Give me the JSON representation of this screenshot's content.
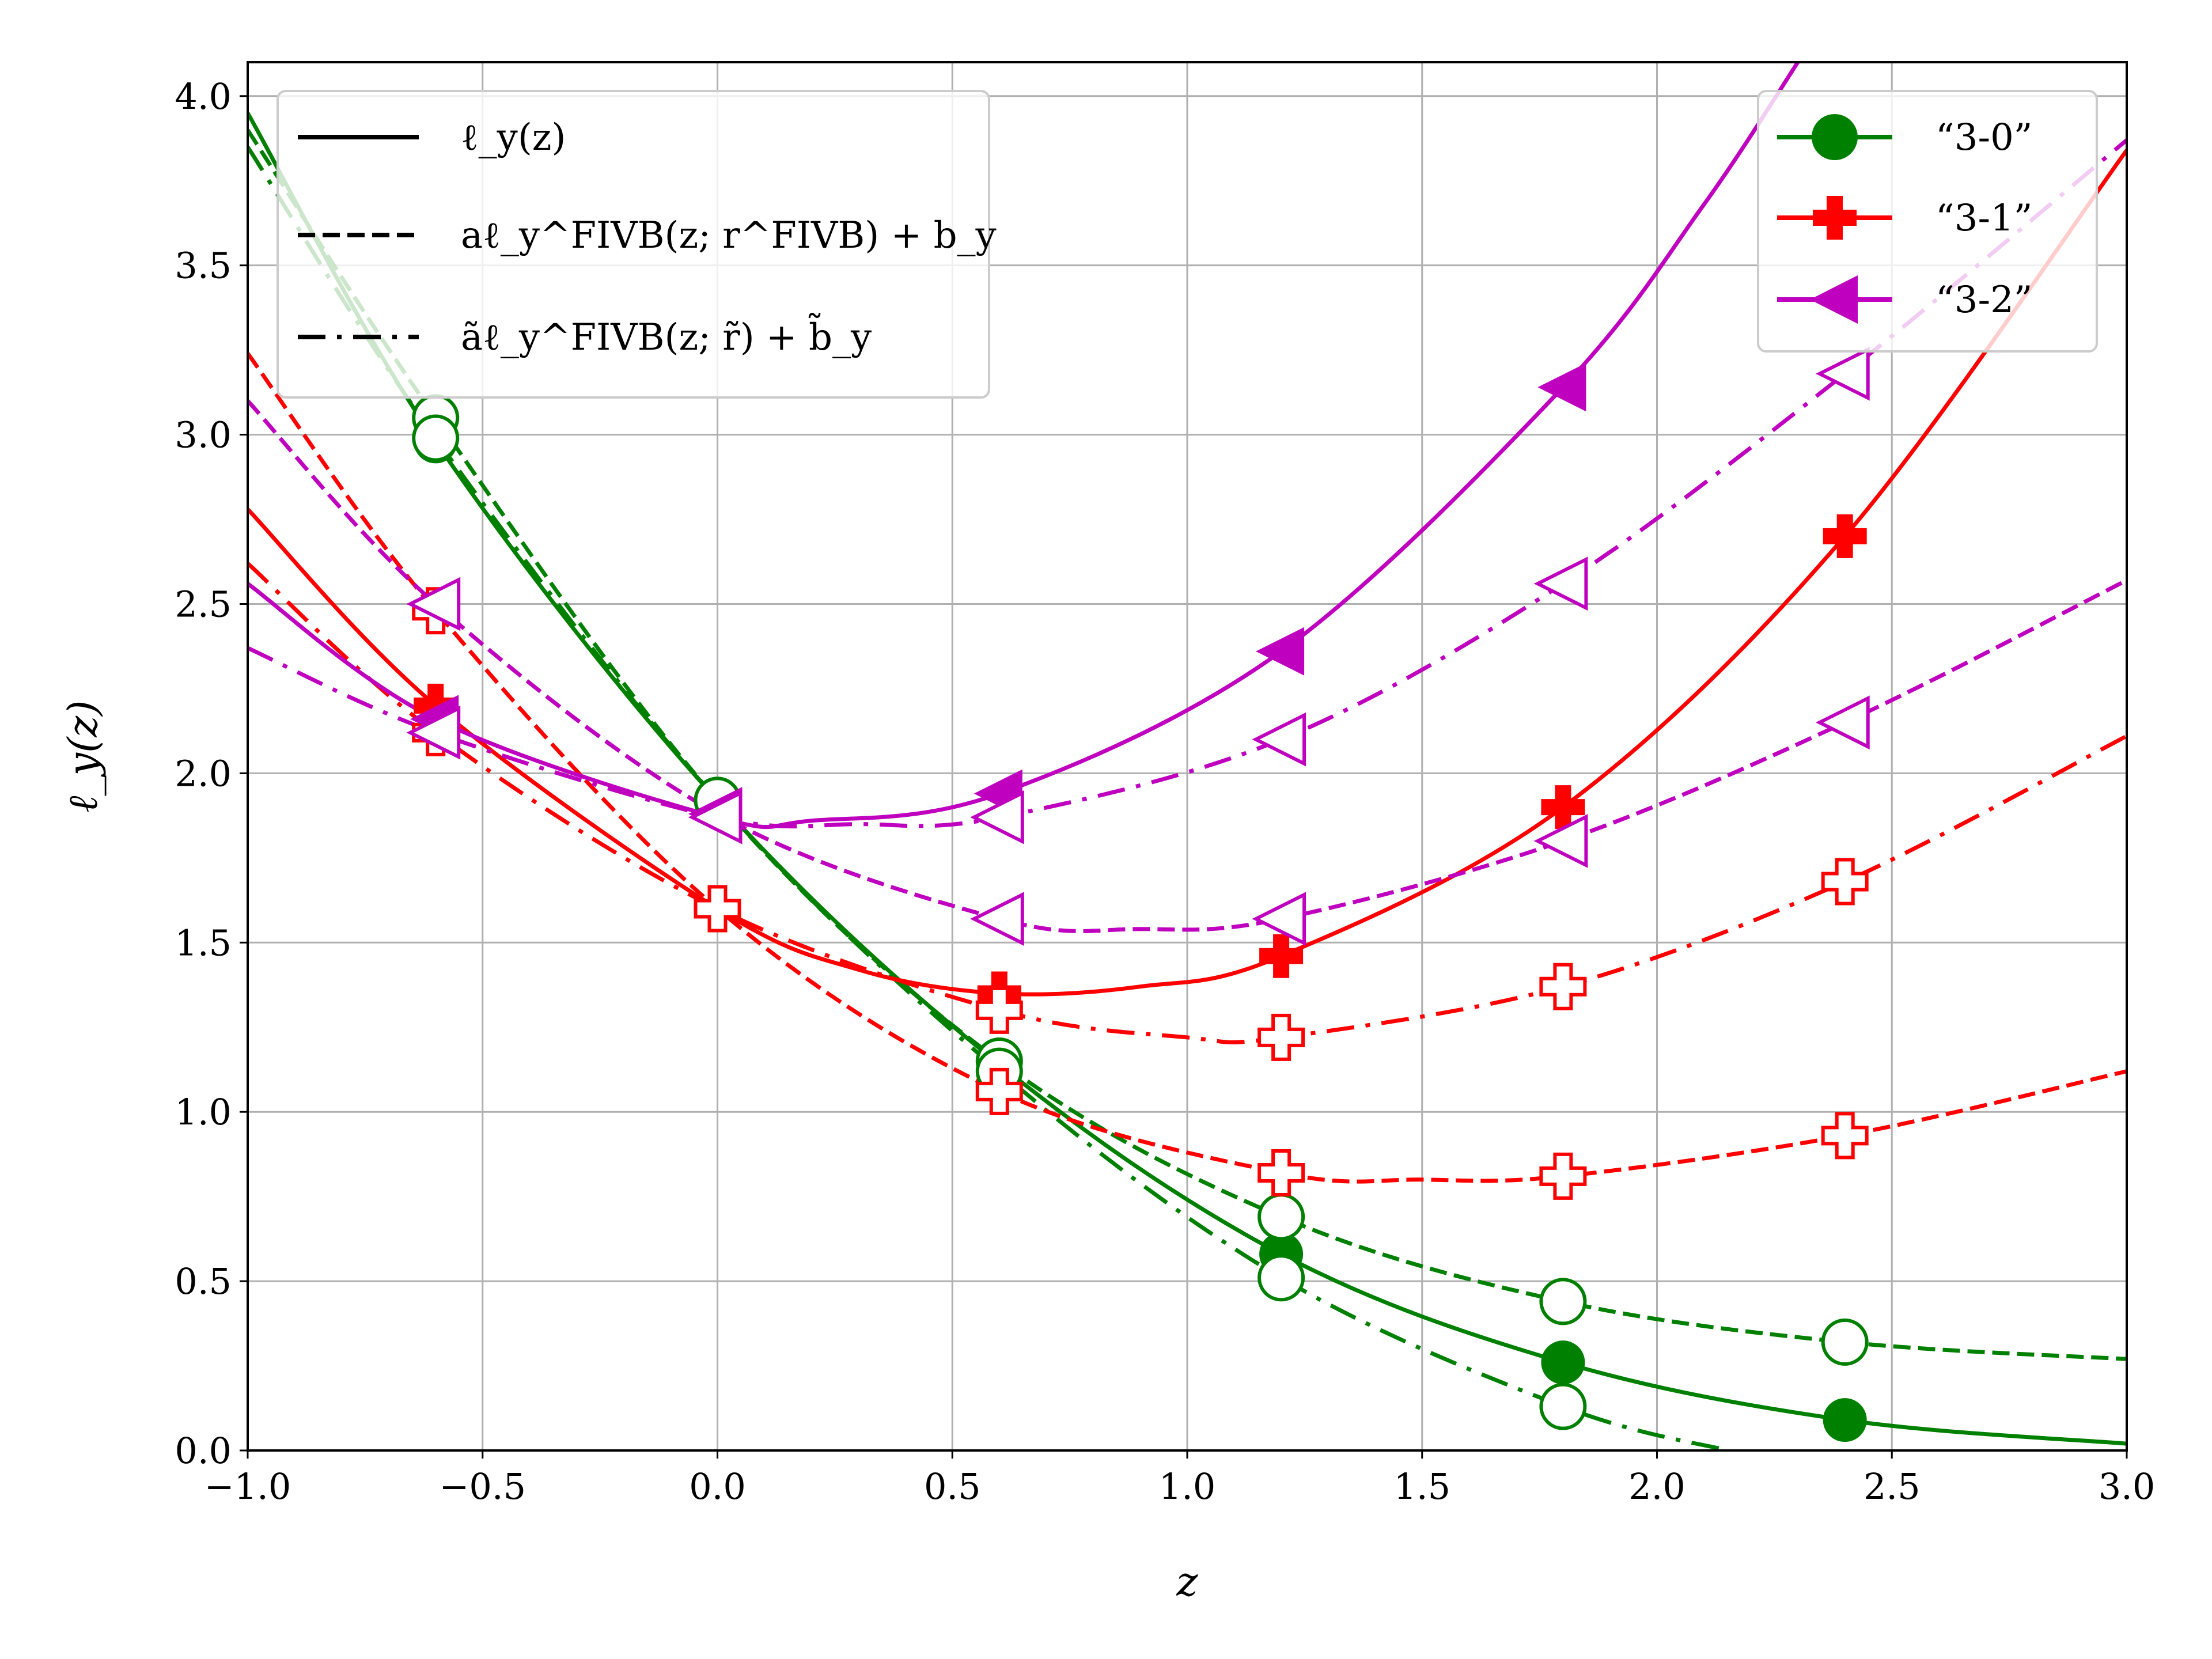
{
  "chart_data": {
    "type": "line",
    "xlabel": "z",
    "ylabel": "ℓ_y(z)",
    "xlim": [
      -1.0,
      3.0
    ],
    "ylim": [
      0.0,
      4.1
    ],
    "grid": true,
    "x_ticks": [
      -1.0,
      -0.5,
      0.0,
      0.5,
      1.0,
      1.5,
      2.0,
      2.5,
      3.0
    ],
    "x_tick_labels": [
      "−1.0",
      "−0.5",
      "0.0",
      "0.5",
      "1.0",
      "1.5",
      "2.0",
      "2.5",
      "3.0"
    ],
    "y_ticks": [
      0.0,
      0.5,
      1.0,
      1.5,
      2.0,
      2.5,
      3.0,
      3.5,
      4.0
    ],
    "y_tick_labels": [
      "0.0",
      "0.5",
      "1.0",
      "1.5",
      "2.0",
      "2.5",
      "3.0",
      "3.5",
      "4.0"
    ],
    "style_legend": {
      "position": "upper-left",
      "entries": [
        {
          "style": "solid",
          "label": "ℓ_y(z)"
        },
        {
          "style": "dashed",
          "label": "aℓ_y^FIVB(z; r^FIVB) + b_y"
        },
        {
          "style": "dashdot",
          "label": "ãℓ_y^FIVB(z; r̃) + b̃_y"
        }
      ]
    },
    "series_legend": {
      "position": "upper-right",
      "entries": [
        {
          "label": "“3-0”",
          "color": "#008000",
          "marker": "circle"
        },
        {
          "label": "“3-1”",
          "color": "#ff0000",
          "marker": "plus"
        },
        {
          "label": "“3-2”",
          "color": "#bf00bf",
          "marker": "triangle-left"
        }
      ]
    },
    "marker_x": [
      -0.6,
      0.0,
      0.6,
      1.2,
      1.8,
      2.4
    ],
    "series": [
      {
        "name": "3-0",
        "variant": "solid",
        "color": "#008000",
        "marker": "circle",
        "filled": true,
        "x": [
          -1.0,
          -0.6,
          0.0,
          0.6,
          1.2,
          1.8,
          2.4,
          3.0
        ],
        "y": [
          3.95,
          2.98,
          1.92,
          1.14,
          0.58,
          0.26,
          0.09,
          0.02
        ]
      },
      {
        "name": "3-0",
        "variant": "dashed",
        "color": "#008000",
        "marker": "circle",
        "filled": false,
        "x": [
          -1.0,
          -0.6,
          0.0,
          0.6,
          1.2,
          1.8,
          2.4,
          3.0
        ],
        "y": [
          3.9,
          3.05,
          1.92,
          1.15,
          0.69,
          0.44,
          0.32,
          0.27
        ]
      },
      {
        "name": "3-0",
        "variant": "dashdot",
        "color": "#008000",
        "marker": "circle",
        "filled": false,
        "x": [
          -1.0,
          -0.6,
          0.0,
          0.6,
          1.2,
          1.8,
          2.15
        ],
        "y": [
          3.85,
          2.99,
          1.92,
          1.12,
          0.51,
          0.13,
          0.0
        ]
      },
      {
        "name": "3-1",
        "variant": "solid",
        "color": "#ff0000",
        "marker": "plus",
        "filled": true,
        "x": [
          -1.0,
          -0.6,
          0.0,
          0.3,
          0.6,
          0.9,
          1.2,
          1.8,
          2.4,
          3.0
        ],
        "y": [
          2.78,
          2.2,
          1.6,
          1.42,
          1.35,
          1.37,
          1.46,
          1.9,
          2.7,
          3.84
        ]
      },
      {
        "name": "3-1",
        "variant": "dashed",
        "color": "#ff0000",
        "marker": "plus",
        "filled": false,
        "x": [
          -1.0,
          -0.6,
          0.0,
          0.6,
          1.2,
          1.5,
          1.8,
          2.4,
          3.0
        ],
        "y": [
          3.24,
          2.48,
          1.6,
          1.06,
          0.82,
          0.8,
          0.81,
          0.93,
          1.12
        ]
      },
      {
        "name": "3-1",
        "variant": "dashdot",
        "color": "#ff0000",
        "marker": "plus",
        "filled": false,
        "x": [
          -1.0,
          -0.6,
          0.0,
          0.6,
          1.0,
          1.2,
          1.8,
          2.4,
          3.0
        ],
        "y": [
          2.62,
          2.12,
          1.6,
          1.3,
          1.22,
          1.22,
          1.37,
          1.68,
          2.11
        ]
      },
      {
        "name": "3-2",
        "variant": "solid",
        "color": "#bf00bf",
        "marker": "triangle-left",
        "filled": true,
        "x": [
          -1.0,
          -0.6,
          0.0,
          0.2,
          0.6,
          1.2,
          1.8,
          2.1,
          2.3
        ],
        "y": [
          2.56,
          2.16,
          1.87,
          1.86,
          1.94,
          2.36,
          3.14,
          3.68,
          4.1
        ]
      },
      {
        "name": "3-2",
        "variant": "dashed",
        "color": "#bf00bf",
        "marker": "triangle-left",
        "filled": false,
        "x": [
          -1.0,
          -0.6,
          0.0,
          0.6,
          0.9,
          1.2,
          1.8,
          2.4,
          3.0
        ],
        "y": [
          3.1,
          2.5,
          1.88,
          1.57,
          1.54,
          1.57,
          1.8,
          2.15,
          2.57
        ]
      },
      {
        "name": "3-2",
        "variant": "dashdot",
        "color": "#bf00bf",
        "marker": "triangle-left",
        "filled": false,
        "x": [
          -1.0,
          -0.6,
          0.0,
          0.3,
          0.6,
          1.2,
          1.8,
          2.4,
          3.0
        ],
        "y": [
          2.37,
          2.12,
          1.87,
          1.85,
          1.87,
          2.1,
          2.56,
          3.18,
          3.87
        ]
      }
    ]
  }
}
